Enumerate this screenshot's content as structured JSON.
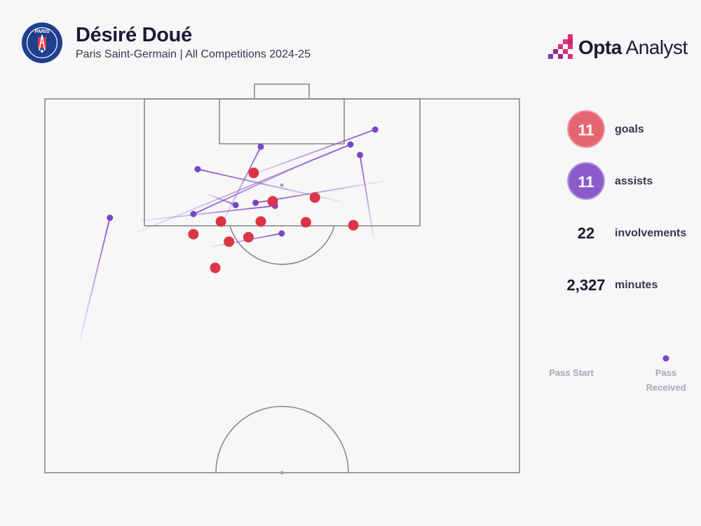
{
  "header": {
    "title": "Désiré Doué",
    "subtitle": "Paris Saint-Germain | All Competitions 2024-25",
    "crest_label": "PARIS"
  },
  "brand": {
    "bold": "Opta",
    "light": " Analyst"
  },
  "colors": {
    "goal": "#dc3545",
    "assist": "#7b45c6",
    "pitch_line": "#8a8a8a",
    "background": "#f7f7f8"
  },
  "stats": {
    "goals": {
      "value": "11",
      "label": "goals"
    },
    "assists": {
      "value": "11",
      "label": "assists"
    },
    "involvements": {
      "value": "22",
      "label": "involvements"
    },
    "minutes": {
      "value": "2,327",
      "label": "minutes"
    }
  },
  "legend": {
    "start": "Pass Start",
    "end": "Pass Received"
  },
  "chart_data": {
    "type": "scatter",
    "series": [
      {
        "name": "goals",
        "points": [
          {
            "x": 86.8,
            "y": 56.9
          },
          {
            "x": 90.1,
            "y": 44.0
          },
          {
            "x": 83.6,
            "y": 37.1
          },
          {
            "x": 83.1,
            "y": 65.0
          },
          {
            "x": 83.6,
            "y": 45.5
          },
          {
            "x": 86.3,
            "y": 48.0
          },
          {
            "x": 83.5,
            "y": 55.0
          },
          {
            "x": 81.5,
            "y": 42.9
          },
          {
            "x": 80.9,
            "y": 38.8
          },
          {
            "x": 81.9,
            "y": 31.3
          },
          {
            "x": 77.4,
            "y": 35.9
          }
        ]
      },
      {
        "name": "assists",
        "passes": [
          {
            "start": {
              "x": 83.2,
              "y": 37.2
            },
            "end": {
              "x": 93.6,
              "y": 45.5
            }
          },
          {
            "start": {
              "x": 89.3,
              "y": 41.2
            },
            "end": {
              "x": 95.9,
              "y": 69.6
            }
          },
          {
            "start": {
              "x": 81.4,
              "y": 69.3
            },
            "end": {
              "x": 92.5,
              "y": 66.4
            }
          },
          {
            "start": {
              "x": 67.8,
              "y": 7.4
            },
            "end": {
              "x": 84.1,
              "y": 13.7
            }
          },
          {
            "start": {
              "x": 89.0,
              "y": 71.6
            },
            "end": {
              "x": 86.1,
              "y": 44.4
            }
          },
          {
            "start": {
              "x": 82.2,
              "y": 19.6
            },
            "end": {
              "x": 93.9,
              "y": 64.4
            }
          },
          {
            "start": {
              "x": 93.1,
              "y": 60.6
            },
            "end": {
              "x": 84.6,
              "y": 31.3
            }
          },
          {
            "start": {
              "x": 86.2,
              "y": 62.8
            },
            "end": {
              "x": 90.6,
              "y": 32.2
            }
          },
          {
            "start": {
              "x": 87.3,
              "y": 34.1
            },
            "end": {
              "x": 85.8,
              "y": 40.2
            }
          },
          {
            "start": {
              "x": 83.7,
              "y": 20.1
            },
            "end": {
              "x": 85.7,
              "y": 48.5
            }
          },
          {
            "start": {
              "x": 80.2,
              "y": 34.9
            },
            "end": {
              "x": 82.0,
              "y": 49.9
            }
          }
        ]
      }
    ]
  }
}
